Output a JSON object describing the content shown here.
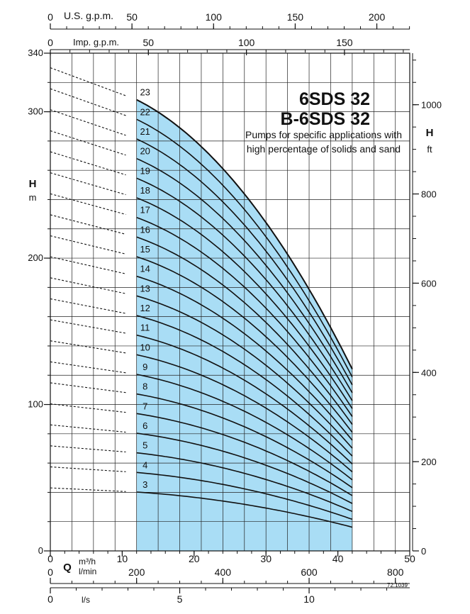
{
  "chart_data": {
    "type": "line",
    "title": "6SDS 32",
    "subtitle": "B-6SDS 32",
    "note_line1": "Pumps for specific applications with",
    "note_line2": "high percentage of solids and sand",
    "code": "72.1039",
    "ylabel_left": "H",
    "ylabel_left_unit": "m",
    "ylabel_right": "H",
    "ylabel_right_unit": "ft",
    "q_symbol": "Q",
    "unit_m3h": "m³/h",
    "unit_lmin": "l/min",
    "unit_ls": "l/s",
    "unit_usgpm": "U.S. g.p.m.",
    "unit_impgpm": "Imp. g.p.m.",
    "xlim_m3h": [
      0,
      50
    ],
    "ylim_m": [
      0,
      340
    ],
    "ylim_ft_max": 1115.5,
    "grid": true,
    "left_ticks_m": [
      0,
      100,
      200,
      300,
      340
    ],
    "left_tick_labels": [
      "0",
      "100",
      "200",
      "300",
      "340"
    ],
    "right_ticks_ft": [
      0,
      200,
      400,
      600,
      800,
      1000
    ],
    "right_tick_labels": [
      "0",
      "200",
      "400",
      "600",
      "800",
      "1000"
    ],
    "m3h_ticks": [
      0,
      10,
      20,
      30,
      40,
      50
    ],
    "m3h_tick_labels": [
      "0",
      "10",
      "20",
      "30",
      "40",
      "50"
    ],
    "lmin_ticks": [
      0,
      200,
      400,
      600,
      800
    ],
    "lmin_tick_labels": [
      "0",
      "200",
      "400",
      "600",
      "800"
    ],
    "ls_ticks": [
      0,
      5,
      10
    ],
    "ls_tick_labels": [
      "0",
      "5",
      "10"
    ],
    "usgpm_ticks": [
      0,
      50,
      100,
      150,
      200
    ],
    "usgpm_tick_labels": [
      "0",
      "50",
      "100",
      "150",
      "200"
    ],
    "impgpm_ticks": [
      0,
      50,
      100,
      150
    ],
    "impgpm_tick_labels": [
      "0",
      "50",
      "100",
      "150"
    ],
    "operating_range_m3h": [
      12,
      42
    ],
    "curve_q_m3h": [
      12,
      42
    ],
    "head_per_stage_m": {
      "at_q12": 13.4,
      "at_q42": 5.4
    },
    "dotted_start_m_per_stage": 14.35,
    "series": [
      {
        "name": "3",
        "stages": 3
      },
      {
        "name": "4",
        "stages": 4
      },
      {
        "name": "5",
        "stages": 5
      },
      {
        "name": "6",
        "stages": 6
      },
      {
        "name": "7",
        "stages": 7
      },
      {
        "name": "8",
        "stages": 8
      },
      {
        "name": "9",
        "stages": 9
      },
      {
        "name": "10",
        "stages": 10
      },
      {
        "name": "11",
        "stages": 11
      },
      {
        "name": "12",
        "stages": 12
      },
      {
        "name": "13",
        "stages": 13
      },
      {
        "name": "14",
        "stages": 14
      },
      {
        "name": "15",
        "stages": 15
      },
      {
        "name": "16",
        "stages": 16
      },
      {
        "name": "17",
        "stages": 17
      },
      {
        "name": "18",
        "stages": 18
      },
      {
        "name": "19",
        "stages": 19
      },
      {
        "name": "20",
        "stages": 20
      },
      {
        "name": "21",
        "stages": 21
      },
      {
        "name": "22",
        "stages": 22
      },
      {
        "name": "23",
        "stages": 23
      }
    ],
    "colors": {
      "fill": "#a9ddf5",
      "curve": "#111111",
      "grid": "#222222",
      "text": "#111111"
    }
  }
}
